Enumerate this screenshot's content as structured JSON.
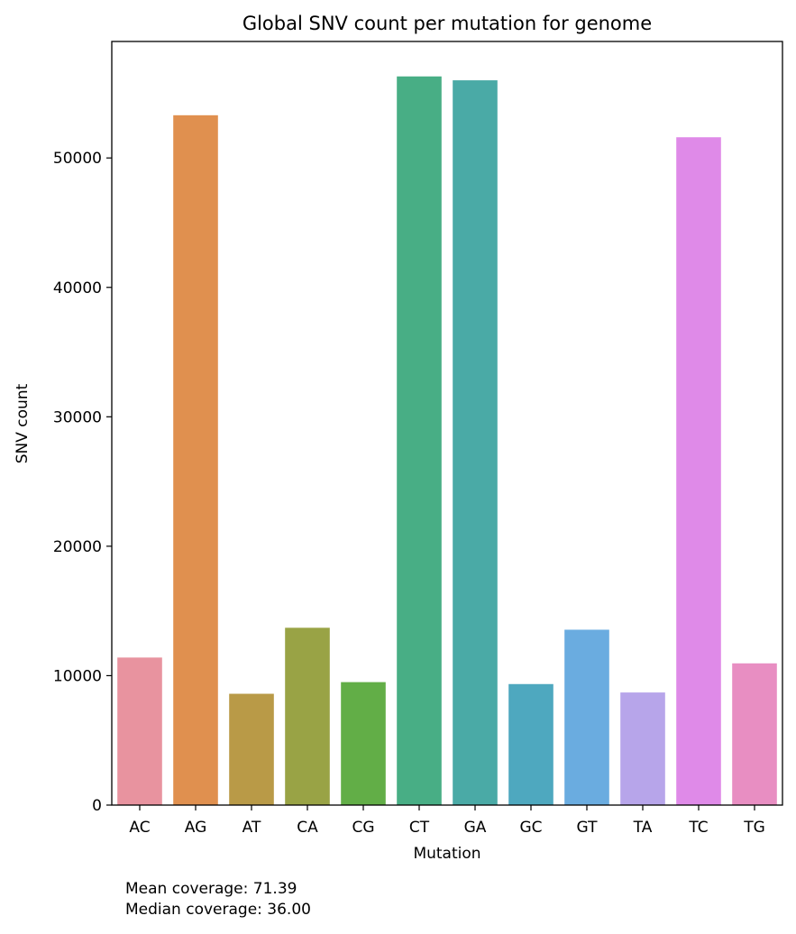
{
  "chart_data": {
    "type": "bar",
    "title": "Global SNV count per mutation for genome",
    "xlabel": "Mutation",
    "ylabel": "SNV count",
    "categories": [
      "AC",
      "AG",
      "AT",
      "CA",
      "CG",
      "CT",
      "GA",
      "GC",
      "GT",
      "TA",
      "TC",
      "TG"
    ],
    "values": [
      11400,
      53300,
      8600,
      13700,
      9500,
      56300,
      56000,
      9350,
      13550,
      8700,
      51600,
      10950
    ],
    "colors": [
      "#e8939f",
      "#e0904f",
      "#b99a47",
      "#99a345",
      "#62ae47",
      "#48ae85",
      "#4aaaa6",
      "#4ea8bf",
      "#6aace0",
      "#b7a5ea",
      "#df8ae8",
      "#e88ec2"
    ],
    "ylim": [
      0,
      59000
    ],
    "yticks": [
      0,
      10000,
      20000,
      30000,
      40000,
      50000
    ],
    "grid": false
  },
  "notes": {
    "mean_coverage": "Mean coverage: 71.39",
    "median_coverage": "Median coverage: 36.00"
  }
}
